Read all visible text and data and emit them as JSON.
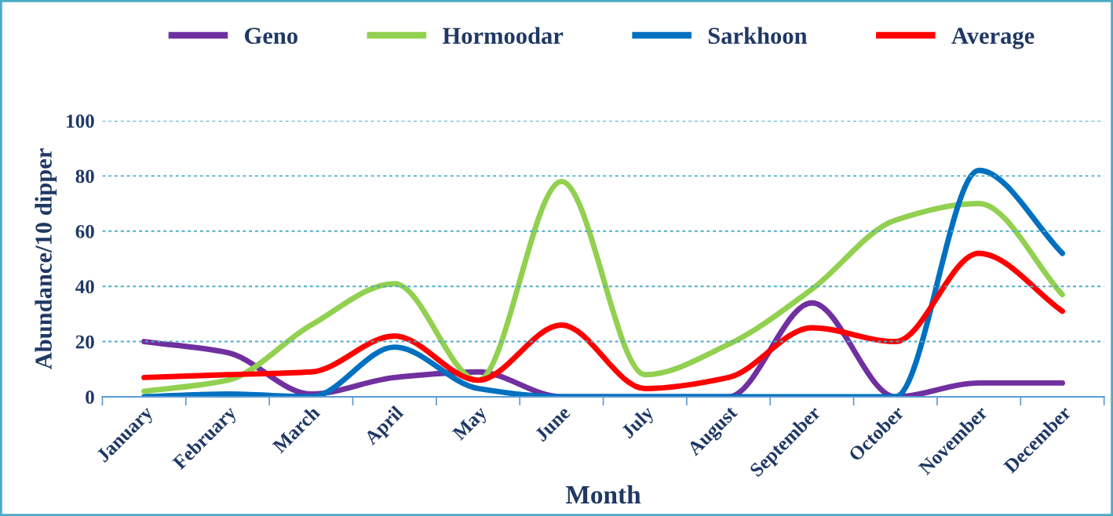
{
  "chart_data": {
    "type": "line",
    "xlabel": "Month",
    "ylabel": "Abundance/10 dipper",
    "categories": [
      "January",
      "February",
      "March",
      "April",
      "May",
      "June",
      "July",
      "August",
      "September",
      "October",
      "November",
      "December"
    ],
    "series": [
      {
        "name": "Geno",
        "color": "#7030a0",
        "values": [
          20,
          16,
          1,
          7,
          9,
          0,
          0,
          0,
          34,
          0,
          5,
          5
        ]
      },
      {
        "name": "Hormoodar",
        "color": "#92d050",
        "values": [
          2,
          6,
          26,
          41,
          6,
          78,
          8,
          19,
          39,
          64,
          70,
          37
        ]
      },
      {
        "name": "Sarkhoon",
        "color": "#0070c0",
        "values": [
          0,
          1,
          0,
          18,
          3,
          0,
          0,
          0,
          0,
          0,
          82,
          52
        ]
      },
      {
        "name": "Average",
        "color": "#ff0000",
        "values": [
          7,
          8,
          9,
          22,
          6,
          26,
          3,
          7,
          25,
          20,
          52,
          31
        ]
      }
    ],
    "ylim": [
      0,
      100
    ],
    "yticks": [
      0,
      20,
      40,
      60,
      80,
      100
    ],
    "grid": "y",
    "legend": "top",
    "marker": "none",
    "line_style": "solid"
  }
}
